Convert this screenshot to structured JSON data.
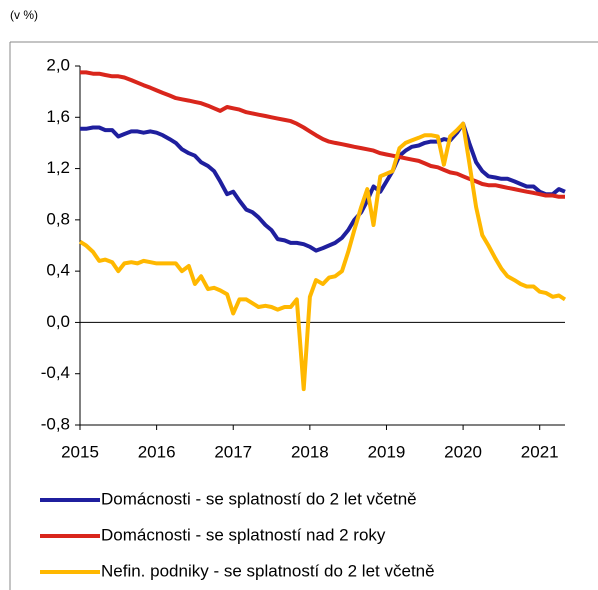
{
  "chart_data": {
    "type": "line",
    "y_label": "(v %)",
    "x": [
      2015,
      2015.08,
      2015.17,
      2015.25,
      2015.33,
      2015.42,
      2015.5,
      2015.58,
      2015.67,
      2015.75,
      2015.83,
      2015.92,
      2016,
      2016.08,
      2016.17,
      2016.25,
      2016.33,
      2016.42,
      2016.5,
      2016.58,
      2016.67,
      2016.75,
      2016.83,
      2016.92,
      2017,
      2017.08,
      2017.17,
      2017.25,
      2017.33,
      2017.42,
      2017.5,
      2017.58,
      2017.67,
      2017.75,
      2017.83,
      2017.92,
      2018,
      2018.08,
      2018.17,
      2018.25,
      2018.33,
      2018.42,
      2018.5,
      2018.58,
      2018.67,
      2018.75,
      2018.83,
      2018.92,
      2019,
      2019.08,
      2019.17,
      2019.25,
      2019.33,
      2019.42,
      2019.5,
      2019.58,
      2019.67,
      2019.75,
      2019.83,
      2019.92,
      2020,
      2020.08,
      2020.17,
      2020.25,
      2020.33,
      2020.42,
      2020.5,
      2020.58,
      2020.67,
      2020.75,
      2020.83,
      2020.92,
      2021,
      2021.08,
      2021.17,
      2021.25,
      2021.33
    ],
    "series": [
      {
        "name": "Domácnosti - se splatností do 2 let včetně",
        "color": "#1f1f9e",
        "values": [
          1.51,
          1.51,
          1.52,
          1.52,
          1.5,
          1.5,
          1.45,
          1.47,
          1.49,
          1.49,
          1.48,
          1.49,
          1.48,
          1.46,
          1.43,
          1.4,
          1.35,
          1.32,
          1.3,
          1.25,
          1.22,
          1.18,
          1.1,
          1.0,
          1.02,
          0.95,
          0.88,
          0.86,
          0.82,
          0.76,
          0.72,
          0.65,
          0.64,
          0.62,
          0.62,
          0.61,
          0.59,
          0.56,
          0.58,
          0.6,
          0.62,
          0.66,
          0.72,
          0.8,
          0.86,
          0.95,
          1.06,
          1.02,
          1.1,
          1.18,
          1.3,
          1.34,
          1.37,
          1.38,
          1.4,
          1.41,
          1.41,
          1.43,
          1.42,
          1.48,
          1.55,
          1.4,
          1.25,
          1.18,
          1.14,
          1.13,
          1.12,
          1.12,
          1.1,
          1.08,
          1.06,
          1.06,
          1.02,
          1.0,
          1.0,
          1.04,
          1.02
        ]
      },
      {
        "name": "Domácnosti - se splatností nad 2 roky",
        "color": "#d9261c",
        "values": [
          1.95,
          1.95,
          1.94,
          1.94,
          1.93,
          1.92,
          1.92,
          1.91,
          1.89,
          1.87,
          1.85,
          1.83,
          1.81,
          1.79,
          1.77,
          1.75,
          1.74,
          1.73,
          1.72,
          1.71,
          1.69,
          1.67,
          1.65,
          1.68,
          1.67,
          1.66,
          1.64,
          1.63,
          1.62,
          1.61,
          1.6,
          1.59,
          1.58,
          1.57,
          1.55,
          1.52,
          1.49,
          1.46,
          1.43,
          1.41,
          1.4,
          1.39,
          1.38,
          1.37,
          1.36,
          1.35,
          1.34,
          1.32,
          1.31,
          1.3,
          1.29,
          1.28,
          1.27,
          1.26,
          1.24,
          1.22,
          1.21,
          1.19,
          1.17,
          1.16,
          1.14,
          1.12,
          1.1,
          1.08,
          1.07,
          1.07,
          1.06,
          1.05,
          1.04,
          1.03,
          1.02,
          1.01,
          1.0,
          0.99,
          0.99,
          0.98,
          0.98
        ]
      },
      {
        "name": "Nefin. podniky - se splatností do 2 let včetně",
        "color": "#ffb800",
        "values": [
          0.63,
          0.6,
          0.55,
          0.48,
          0.49,
          0.47,
          0.4,
          0.46,
          0.47,
          0.46,
          0.48,
          0.47,
          0.46,
          0.46,
          0.46,
          0.46,
          0.4,
          0.44,
          0.3,
          0.36,
          0.26,
          0.27,
          0.25,
          0.22,
          0.07,
          0.18,
          0.18,
          0.15,
          0.12,
          0.13,
          0.12,
          0.1,
          0.12,
          0.12,
          0.18,
          -0.52,
          0.2,
          0.33,
          0.3,
          0.35,
          0.36,
          0.4,
          0.55,
          0.72,
          0.9,
          1.04,
          0.76,
          1.14,
          1.16,
          1.18,
          1.36,
          1.4,
          1.42,
          1.44,
          1.46,
          1.46,
          1.45,
          1.23,
          1.45,
          1.5,
          1.55,
          1.25,
          0.9,
          0.68,
          0.6,
          0.5,
          0.42,
          0.36,
          0.33,
          0.3,
          0.28,
          0.28,
          0.24,
          0.23,
          0.2,
          0.21,
          0.18
        ]
      }
    ],
    "xlim": [
      2015,
      2021.33
    ],
    "xticks": [
      2015,
      2016,
      2017,
      2018,
      2019,
      2020,
      2021
    ],
    "ylim": [
      -0.8,
      2.0
    ],
    "yticks": [
      {
        "value": -0.8,
        "label": "-0,8"
      },
      {
        "value": -0.4,
        "label": "-0,4"
      },
      {
        "value": 0,
        "label": "0,0"
      },
      {
        "value": 0.4,
        "label": "0,4"
      },
      {
        "value": 0.8,
        "label": "0,8"
      },
      {
        "value": 1.2,
        "label": "1,2"
      },
      {
        "value": 1.6,
        "label": "1,6"
      },
      {
        "value": 2.0,
        "label": "2,0"
      }
    ]
  }
}
